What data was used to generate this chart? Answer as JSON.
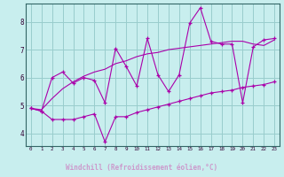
{
  "xlabel": "Windchill (Refroidissement éolien,°C)",
  "xlim": [
    -0.5,
    23.5
  ],
  "ylim": [
    3.55,
    8.65
  ],
  "xticks": [
    0,
    1,
    2,
    3,
    4,
    5,
    6,
    7,
    8,
    9,
    10,
    11,
    12,
    13,
    14,
    15,
    16,
    17,
    18,
    19,
    20,
    21,
    22,
    23
  ],
  "yticks": [
    4,
    5,
    6,
    7,
    8
  ],
  "bg_color": "#c8eeee",
  "line_color": "#aa00aa",
  "grid_color": "#99cccc",
  "xlabel_bg": "#330066",
  "xlabel_fg": "#cc99cc",
  "line1_y": [
    4.9,
    4.8,
    4.5,
    4.5,
    4.5,
    4.6,
    4.7,
    3.7,
    4.6,
    4.6,
    4.75,
    4.85,
    4.95,
    5.05,
    5.15,
    5.25,
    5.35,
    5.45,
    5.5,
    5.55,
    5.65,
    5.7,
    5.75,
    5.85
  ],
  "line2_y": [
    4.9,
    4.8,
    6.0,
    6.2,
    5.8,
    6.0,
    5.9,
    5.1,
    7.05,
    6.4,
    5.7,
    7.4,
    6.1,
    5.5,
    6.1,
    7.95,
    8.5,
    7.3,
    7.2,
    7.2,
    5.1,
    7.1,
    7.35,
    7.4
  ],
  "line3_y": [
    4.9,
    4.85,
    5.25,
    5.6,
    5.85,
    6.05,
    6.2,
    6.3,
    6.5,
    6.6,
    6.75,
    6.85,
    6.9,
    7.0,
    7.05,
    7.1,
    7.15,
    7.2,
    7.25,
    7.3,
    7.3,
    7.2,
    7.15,
    7.35
  ]
}
